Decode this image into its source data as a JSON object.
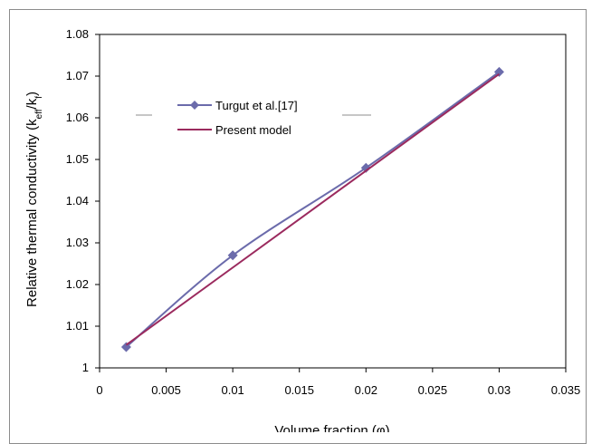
{
  "chart_data": {
    "type": "line",
    "xlabel": "Volume fraction (φ)",
    "ylabel_main": "Relative thermal conductivity (k",
    "ylabel_sub1": "eff",
    "ylabel_mid": "/k",
    "ylabel_sub2": "f",
    "ylabel_end": ")",
    "xlim": [
      0,
      0.035
    ],
    "ylim": [
      1,
      1.08
    ],
    "x_ticks": [
      "0",
      "0.005",
      "0.01",
      "0.015",
      "0.02",
      "0.025",
      "0.03",
      "0.035"
    ],
    "y_ticks": [
      "1",
      "1.01",
      "1.02",
      "1.03",
      "1.04",
      "1.05",
      "1.06",
      "1.07",
      "1.08"
    ],
    "legend_position": "upper-left",
    "grid": false,
    "series": [
      {
        "name": "Turgut et al.[17]",
        "color": "#6b6bab",
        "marker": "diamond",
        "x": [
          0.002,
          0.01,
          0.02,
          0.03
        ],
        "y": [
          1.005,
          1.027,
          1.048,
          1.071
        ]
      },
      {
        "name": "Present model",
        "color": "#9b2a5e",
        "marker": "none",
        "x": [
          0.002,
          0.03
        ],
        "y": [
          1.0055,
          1.0705
        ]
      }
    ]
  }
}
